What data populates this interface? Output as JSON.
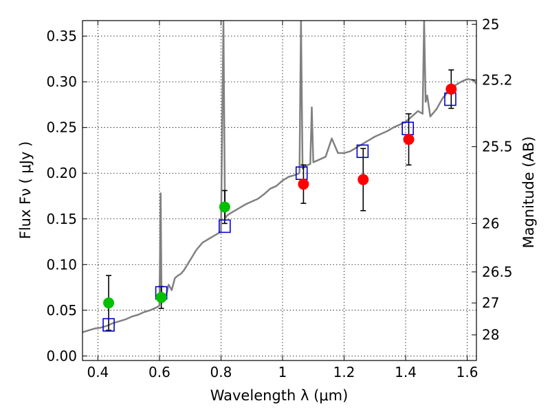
{
  "chart_data": {
    "type": "scatter",
    "xlabel": "Wavelength  λ (μm)",
    "ylabel": "Flux  Fν  ( μJy )",
    "y2label": "Magnitude (AB)",
    "xlim": [
      0.35,
      1.63
    ],
    "ylim": [
      -0.005,
      0.367
    ],
    "grid": true,
    "x_ticks": [
      0.4,
      0.6,
      0.8,
      1.0,
      1.2,
      1.4,
      1.6
    ],
    "x_tick_labels": [
      "0.4",
      "0.6",
      "0.8",
      "1",
      "1.2",
      "1.4",
      "1.6"
    ],
    "y_ticks": [
      0.0,
      0.05,
      0.1,
      0.15,
      0.2,
      0.25,
      0.3,
      0.35
    ],
    "y_tick_labels": [
      "0.00",
      "0.05",
      "0.10",
      "0.15",
      "0.20",
      "0.25",
      "0.30",
      "0.35"
    ],
    "y2_ticks": [
      {
        "label": "25",
        "flux": 0.363
      },
      {
        "label": "25.2",
        "flux": 0.302
      },
      {
        "label": "25.5",
        "flux": 0.229
      },
      {
        "label": "26",
        "flux": 0.145
      },
      {
        "label": "26.5",
        "flux": 0.092
      },
      {
        "label": "27",
        "flux": 0.058
      },
      {
        "label": "28",
        "flux": 0.023
      }
    ],
    "series": [
      {
        "type": "line",
        "color": "#808080",
        "x": [
          0.35,
          0.37,
          0.39,
          0.41,
          0.43,
          0.45,
          0.47,
          0.49,
          0.51,
          0.53,
          0.55,
          0.57,
          0.59,
          0.6,
          0.604,
          0.607,
          0.61,
          0.62,
          0.63,
          0.64,
          0.65,
          0.66,
          0.67,
          0.68,
          0.7,
          0.72,
          0.74,
          0.76,
          0.78,
          0.8,
          0.808,
          0.813,
          0.818,
          0.825,
          0.84,
          0.86,
          0.88,
          0.9,
          0.92,
          0.94,
          0.96,
          0.98,
          1.0,
          1.02,
          1.04,
          1.055,
          1.06,
          1.065,
          1.075,
          1.09,
          1.095,
          1.1,
          1.12,
          1.14,
          1.16,
          1.18,
          1.2,
          1.22,
          1.24,
          1.26,
          1.28,
          1.3,
          1.32,
          1.34,
          1.36,
          1.38,
          1.4,
          1.42,
          1.44,
          1.455,
          1.46,
          1.465,
          1.47,
          1.48,
          1.5,
          1.52,
          1.54,
          1.56,
          1.58,
          1.6,
          1.62,
          1.63
        ],
        "y": [
          0.026,
          0.028,
          0.03,
          0.031,
          0.033,
          0.036,
          0.038,
          0.04,
          0.043,
          0.045,
          0.048,
          0.05,
          0.053,
          0.055,
          0.178,
          0.058,
          0.06,
          0.064,
          0.078,
          0.072,
          0.085,
          0.088,
          0.09,
          0.094,
          0.105,
          0.116,
          0.124,
          0.128,
          0.132,
          0.136,
          0.367,
          0.15,
          0.153,
          0.155,
          0.158,
          0.162,
          0.166,
          0.169,
          0.172,
          0.177,
          0.183,
          0.186,
          0.192,
          0.196,
          0.198,
          0.2,
          0.367,
          0.205,
          0.208,
          0.21,
          0.272,
          0.212,
          0.215,
          0.218,
          0.238,
          0.222,
          0.222,
          0.224,
          0.228,
          0.232,
          0.236,
          0.24,
          0.243,
          0.246,
          0.25,
          0.253,
          0.256,
          0.262,
          0.268,
          0.265,
          0.367,
          0.278,
          0.285,
          0.262,
          0.27,
          0.282,
          0.29,
          0.296,
          0.3,
          0.303,
          0.302,
          0.298
        ]
      },
      {
        "type": "scatter",
        "marker": "square-open",
        "color": "#0000cc",
        "x": [
          0.435,
          0.606,
          0.812,
          1.062,
          1.26,
          1.407,
          1.545
        ],
        "y": [
          0.034,
          0.069,
          0.142,
          0.2,
          0.224,
          0.249,
          0.281
        ]
      },
      {
        "type": "scatter",
        "marker": "circle",
        "color": "#00c000",
        "x": [
          0.435,
          0.606,
          0.812
        ],
        "y": [
          0.058,
          0.064,
          0.163
        ],
        "yerr": [
          0.03,
          0.012,
          0.018
        ]
      },
      {
        "type": "scatter",
        "marker": "circle",
        "color": "#ff0000",
        "x": [
          1.068,
          1.262,
          1.41,
          1.548
        ],
        "y": [
          0.188,
          0.193,
          0.237,
          0.292
        ],
        "yerr": [
          0.021,
          0.034,
          0.028,
          0.021
        ]
      }
    ]
  }
}
